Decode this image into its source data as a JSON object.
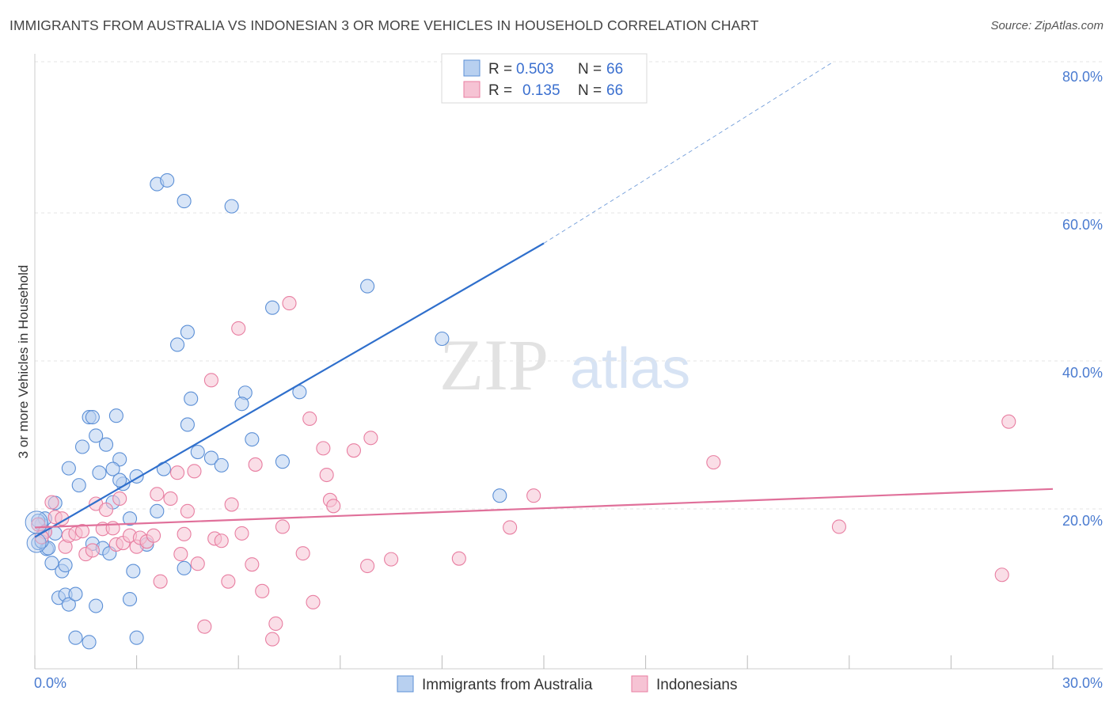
{
  "title": "IMMIGRANTS FROM AUSTRALIA VS INDONESIAN 3 OR MORE VEHICLES IN HOUSEHOLD CORRELATION CHART",
  "source": "Source: ZipAtlas.com",
  "watermark": {
    "zip": "ZIP",
    "atlas": "atlas"
  },
  "chart_data": {
    "type": "scatter",
    "title": "IMMIGRANTS FROM AUSTRALIA VS INDONESIAN 3 OR MORE VEHICLES IN HOUSEHOLD CORRELATION CHART",
    "xlabel": "",
    "ylabel": "3 or more Vehicles in Household",
    "xlim": [
      0,
      30
    ],
    "ylim": [
      0,
      80
    ],
    "x_tick_labels": [
      "0.0%",
      "30.0%"
    ],
    "y_ticks": [
      20,
      40,
      60,
      80
    ],
    "y_tick_labels": [
      "20.0%",
      "40.0%",
      "60.0%",
      "80.0%"
    ],
    "legend": {
      "r_label": "R =",
      "n_label": "N =",
      "entries": [
        {
          "name": "Immigrants from Australia",
          "r": "0.503",
          "n": "66"
        },
        {
          "name": "Indonesians",
          "r": "0.135",
          "n": "66"
        }
      ]
    },
    "series": [
      {
        "name": "Immigrants from Australia",
        "color": "#5b8fd6",
        "fill": "#b8d0f0",
        "trend": {
          "x0": 0,
          "y0": 17.8,
          "x1": 15.0,
          "y1": 57.5,
          "dash_to_x": 23.5,
          "dash_to_y": 80
        },
        "points": [
          [
            0.1,
            17.0
          ],
          [
            0.2,
            19.5
          ],
          [
            0.3,
            18.5
          ],
          [
            0.35,
            16.2
          ],
          [
            0.5,
            14.3
          ],
          [
            0.6,
            18.3
          ],
          [
            0.8,
            13.2
          ],
          [
            0.9,
            14.0
          ],
          [
            0.7,
            9.6
          ],
          [
            0.9,
            10.0
          ],
          [
            1.0,
            8.7
          ],
          [
            1.2,
            10.1
          ],
          [
            1.2,
            4.2
          ],
          [
            1.6,
            3.6
          ],
          [
            1.8,
            8.5
          ],
          [
            1.4,
            30.0
          ],
          [
            1.6,
            34.0
          ],
          [
            1.7,
            34.0
          ],
          [
            1.8,
            31.5
          ],
          [
            2.1,
            30.3
          ],
          [
            2.4,
            34.2
          ],
          [
            2.5,
            28.3
          ],
          [
            2.3,
            27.0
          ],
          [
            1.9,
            26.5
          ],
          [
            1.3,
            24.8
          ],
          [
            1.0,
            27.1
          ],
          [
            0.6,
            22.4
          ],
          [
            0.3,
            20.3
          ],
          [
            2.6,
            25.0
          ],
          [
            2.5,
            25.5
          ],
          [
            3.0,
            26.0
          ],
          [
            2.3,
            22.5
          ],
          [
            1.7,
            16.9
          ],
          [
            2.0,
            16.3
          ],
          [
            2.2,
            15.6
          ],
          [
            2.8,
            9.4
          ],
          [
            3.0,
            4.2
          ],
          [
            2.9,
            13.2
          ],
          [
            3.3,
            16.8
          ],
          [
            2.8,
            20.3
          ],
          [
            3.6,
            21.3
          ],
          [
            3.8,
            27.0
          ],
          [
            3.6,
            65.5
          ],
          [
            3.9,
            66.0
          ],
          [
            4.4,
            63.2
          ],
          [
            5.8,
            62.5
          ],
          [
            4.5,
            45.5
          ],
          [
            4.2,
            43.8
          ],
          [
            4.6,
            36.5
          ],
          [
            4.5,
            33.0
          ],
          [
            4.8,
            29.3
          ],
          [
            5.2,
            28.5
          ],
          [
            5.5,
            27.5
          ],
          [
            6.2,
            37.3
          ],
          [
            6.1,
            35.8
          ],
          [
            6.4,
            31.0
          ],
          [
            7.0,
            48.8
          ],
          [
            7.3,
            28.0
          ],
          [
            7.8,
            37.4
          ],
          [
            9.8,
            51.7
          ],
          [
            12.0,
            44.6
          ],
          [
            13.7,
            23.4
          ],
          [
            4.4,
            13.6
          ],
          [
            0.4,
            16.3
          ],
          [
            0.1,
            20.0
          ],
          [
            0.2,
            17.2
          ]
        ]
      },
      {
        "name": "Indonesians",
        "color": "#e87ea1",
        "fill": "#f6c3d4",
        "trend": {
          "x0": 0,
          "y0": 19.1,
          "x1": 30,
          "y1": 24.3
        },
        "points": [
          [
            0.1,
            19.5
          ],
          [
            0.3,
            18.5
          ],
          [
            0.5,
            22.5
          ],
          [
            0.6,
            20.5
          ],
          [
            0.8,
            20.3
          ],
          [
            0.9,
            16.5
          ],
          [
            1.0,
            18.0
          ],
          [
            1.2,
            18.3
          ],
          [
            1.4,
            18.6
          ],
          [
            1.5,
            15.5
          ],
          [
            1.7,
            16.0
          ],
          [
            1.8,
            22.3
          ],
          [
            2.0,
            18.9
          ],
          [
            2.1,
            21.5
          ],
          [
            2.3,
            19.0
          ],
          [
            2.4,
            16.8
          ],
          [
            2.5,
            23.0
          ],
          [
            2.6,
            17.0
          ],
          [
            2.8,
            18.0
          ],
          [
            3.0,
            16.5
          ],
          [
            3.1,
            17.7
          ],
          [
            3.3,
            17.2
          ],
          [
            3.5,
            18.0
          ],
          [
            3.6,
            23.6
          ],
          [
            3.7,
            11.8
          ],
          [
            4.0,
            23.0
          ],
          [
            4.2,
            26.5
          ],
          [
            4.3,
            15.5
          ],
          [
            4.4,
            18.2
          ],
          [
            4.5,
            21.3
          ],
          [
            4.7,
            26.7
          ],
          [
            4.8,
            14.2
          ],
          [
            5.0,
            5.7
          ],
          [
            5.2,
            39.0
          ],
          [
            5.3,
            17.6
          ],
          [
            5.5,
            17.3
          ],
          [
            5.7,
            11.8
          ],
          [
            5.8,
            22.2
          ],
          [
            6.0,
            46.0
          ],
          [
            6.1,
            18.3
          ],
          [
            6.4,
            14.1
          ],
          [
            6.5,
            27.6
          ],
          [
            6.7,
            10.5
          ],
          [
            7.0,
            4.0
          ],
          [
            7.1,
            6.1
          ],
          [
            7.3,
            19.2
          ],
          [
            7.5,
            49.4
          ],
          [
            7.9,
            15.6
          ],
          [
            8.1,
            33.8
          ],
          [
            8.2,
            9.0
          ],
          [
            8.5,
            29.8
          ],
          [
            8.6,
            26.2
          ],
          [
            8.7,
            22.8
          ],
          [
            8.8,
            22.0
          ],
          [
            9.4,
            29.5
          ],
          [
            9.8,
            13.9
          ],
          [
            9.9,
            31.2
          ],
          [
            10.5,
            14.8
          ],
          [
            12.5,
            14.9
          ],
          [
            14.0,
            19.1
          ],
          [
            14.7,
            23.4
          ],
          [
            20.0,
            27.9
          ],
          [
            23.7,
            19.2
          ],
          [
            28.5,
            12.7
          ],
          [
            28.7,
            33.4
          ],
          [
            0.2,
            17.8
          ]
        ]
      }
    ]
  }
}
